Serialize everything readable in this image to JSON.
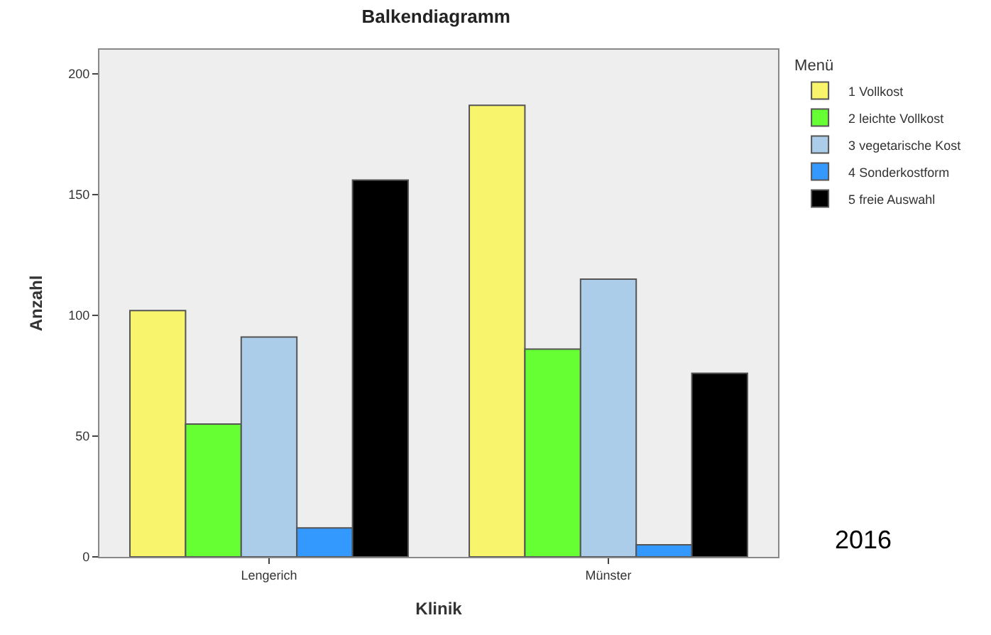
{
  "chart_data": {
    "type": "bar",
    "title": "Balkendiagramm",
    "xlabel": "Klinik",
    "ylabel": "Anzahl",
    "legend_title": "Menü",
    "categories": [
      "Lengerich",
      "Münster"
    ],
    "series": [
      {
        "name": "1 Vollkost",
        "color": "#f8f46c",
        "values": [
          102,
          187
        ]
      },
      {
        "name": "2 leichte Vollkost",
        "color": "#66ff33",
        "values": [
          55,
          86
        ]
      },
      {
        "name": "3 vegetarische Kost",
        "color": "#abcdea",
        "values": [
          91,
          115
        ]
      },
      {
        "name": "4 Sonderkostform",
        "color": "#3399ff",
        "values": [
          12,
          5
        ]
      },
      {
        "name": "5 freie Auswahl",
        "color": "#000000",
        "values": [
          156,
          76
        ]
      }
    ],
    "ylim": [
      0,
      210
    ],
    "yticks": [
      0,
      50,
      100,
      150,
      200
    ],
    "grid": false,
    "legend": "top right",
    "annotations": [
      "2016"
    ]
  }
}
